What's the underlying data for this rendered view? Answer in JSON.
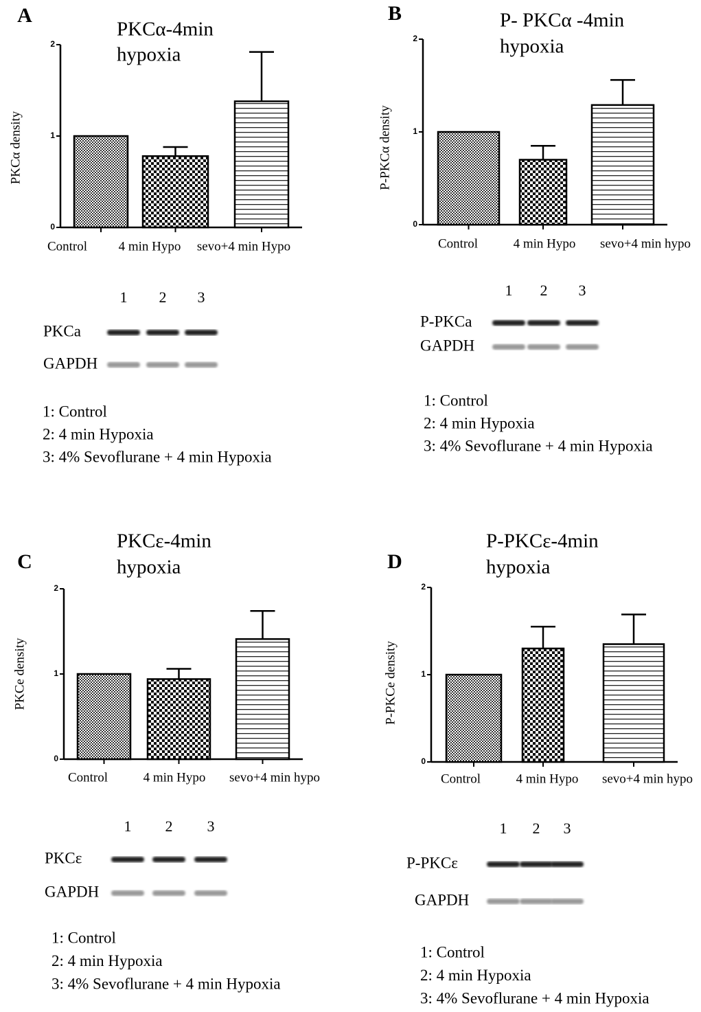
{
  "chart_data": [
    {
      "type": "bar",
      "panel": "A",
      "title": [
        "PKCα-4min",
        "hypoxia"
      ],
      "ylabel": "PKCα density",
      "categories": [
        "Control",
        "4 min Hypo",
        "sevo+4 min Hypo"
      ],
      "values": [
        1.0,
        0.78,
        1.38
      ],
      "errors": [
        0,
        0.1,
        0.54
      ],
      "ylim": [
        0,
        2
      ],
      "yticks": [
        0,
        1,
        2
      ],
      "lanes": [
        "1",
        "2",
        "3"
      ],
      "blot_labels": [
        "PKCa",
        "GAPDH"
      ],
      "legend_items": [
        "1: Control",
        "2: 4 min Hypoxia",
        "3: 4% Sevoflurane + 4 min Hypoxia"
      ]
    },
    {
      "type": "bar",
      "panel": "B",
      "title": [
        "P- PKCα -4min",
        "hypoxia"
      ],
      "ylabel": "P-PKCα density",
      "categories": [
        "Control",
        "4 min Hypo",
        "sevo+4 min hypo"
      ],
      "values": [
        1.0,
        0.7,
        1.29
      ],
      "errors": [
        0,
        0.15,
        0.27
      ],
      "ylim": [
        0,
        2
      ],
      "yticks": [
        0,
        1,
        2
      ],
      "lanes": [
        "1",
        "2",
        "3"
      ],
      "blot_labels": [
        "P-PKCa",
        "GAPDH"
      ],
      "legend_items": [
        "1:  Control",
        "2:  4 min Hypoxia",
        "3:  4% Sevoflurane + 4 min Hypoxia"
      ]
    },
    {
      "type": "bar",
      "panel": "C",
      "title": [
        "PKCε-4min",
        "hypoxia"
      ],
      "ylabel": "PKCe density",
      "categories": [
        "Control",
        "4 min Hypo",
        "sevo+4 min hypo"
      ],
      "values": [
        1.0,
        0.94,
        1.41
      ],
      "errors": [
        0,
        0.12,
        0.33
      ],
      "ylim": [
        0,
        2
      ],
      "yticks": [
        0,
        1,
        2
      ],
      "lanes": [
        "1",
        "2",
        "3"
      ],
      "blot_labels": [
        "PKCε",
        "GAPDH"
      ],
      "legend_items": [
        "1: Control",
        "2: 4 min Hypoxia",
        "3: 4% Sevoflurane + 4 min Hypoxia"
      ]
    },
    {
      "type": "bar",
      "panel": "D",
      "title": [
        "P-PKCε-4min",
        "hypoxia"
      ],
      "ylabel": "P-PKCe density",
      "categories": [
        "Control",
        "4 min Hypo",
        "sevo+4 min hypo"
      ],
      "values": [
        1.0,
        1.3,
        1.35
      ],
      "errors": [
        0,
        0.25,
        0.34
      ],
      "ylim": [
        0,
        2
      ],
      "yticks": [
        0,
        1,
        2
      ],
      "lanes": [
        "1",
        "2",
        "3"
      ],
      "blot_labels": [
        "P-PKCε",
        "GAPDH"
      ],
      "legend_items": [
        "1: Control",
        "2: 4 min Hypoxia",
        "3: 4% Sevoflurane + 4 min Hypoxia"
      ]
    }
  ]
}
